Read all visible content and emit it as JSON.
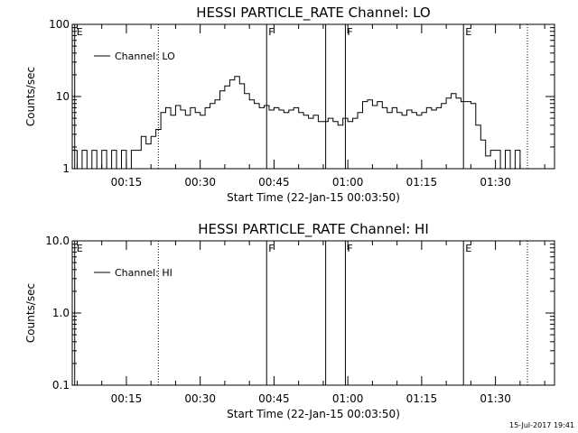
{
  "chart_data": [
    {
      "type": "line",
      "title": "HESSI PARTICLE_RATE Channel: LO",
      "xlabel": "Start Time (22-Jan-15 00:03:50)",
      "ylabel": "Counts/sec",
      "y_scale": "log",
      "ylim": [
        1,
        100
      ],
      "xlim_minutes": [
        4,
        102
      ],
      "x_ticks": [
        "00:15",
        "00:30",
        "00:45",
        "01:00",
        "01:15",
        "01:30"
      ],
      "y_ticks": [
        "1",
        "10",
        "100"
      ],
      "legend": {
        "label": "Channel: LO",
        "placement": "top-left"
      },
      "markers": [
        {
          "label": "E",
          "minute": 4.5,
          "style": "solid"
        },
        {
          "label": "",
          "minute": 21.5,
          "style": "dotted"
        },
        {
          "label": "F",
          "minute": 43.5,
          "style": "solid"
        },
        {
          "label": "",
          "minute": 55.5,
          "style": "solid"
        },
        {
          "label": "F",
          "minute": 59.5,
          "style": "solid"
        },
        {
          "label": "E",
          "minute": 83.5,
          "style": "solid"
        },
        {
          "label": "",
          "minute": 96.5,
          "style": "dotted"
        }
      ],
      "series": [
        {
          "name": "Channel: LO",
          "x_minutes": [
            4,
            5,
            6,
            7,
            8,
            9,
            10,
            11,
            12,
            13,
            14,
            15,
            16,
            17,
            18,
            19,
            20,
            21,
            22,
            23,
            24,
            25,
            26,
            27,
            28,
            29,
            30,
            31,
            32,
            33,
            34,
            35,
            36,
            37,
            38,
            39,
            40,
            41,
            42,
            43,
            44,
            45,
            46,
            47,
            48,
            49,
            50,
            51,
            52,
            53,
            54,
            55,
            56,
            57,
            58,
            59,
            60,
            61,
            62,
            63,
            64,
            65,
            66,
            67,
            68,
            69,
            70,
            71,
            72,
            73,
            74,
            75,
            76,
            77,
            78,
            79,
            80,
            81,
            82,
            83,
            84,
            85,
            86,
            87,
            88,
            89,
            90,
            91,
            92,
            93,
            94,
            95
          ],
          "values": [
            1.8,
            1,
            1.8,
            1,
            1.8,
            1,
            1.8,
            1,
            1.8,
            1,
            1.8,
            1,
            1.8,
            1.8,
            2.8,
            2.2,
            2.8,
            3.5,
            6,
            7,
            5.5,
            7.5,
            6.5,
            5.5,
            7,
            6,
            5.5,
            7,
            8,
            9,
            12,
            14,
            17,
            19,
            15,
            11,
            9,
            8,
            7,
            7.5,
            6.5,
            7,
            6.5,
            6,
            6.5,
            7,
            6,
            5.5,
            5,
            5.5,
            4.5,
            4.5,
            5,
            4.5,
            4,
            5,
            4.5,
            5,
            6,
            8.5,
            9,
            7.5,
            8.5,
            7,
            6,
            7,
            6,
            5.5,
            6.5,
            6,
            5.5,
            6,
            7,
            6.5,
            7,
            8,
            9.5,
            11,
            9.5,
            8.5,
            8.5,
            8,
            4,
            2.5,
            1.5,
            1.8,
            1.8,
            1,
            1.8,
            1,
            1.8,
            1
          ]
        }
      ]
    },
    {
      "type": "line",
      "title": "HESSI PARTICLE_RATE Channel: HI",
      "xlabel": "Start Time (22-Jan-15 00:03:50)",
      "ylabel": "Counts/sec",
      "y_scale": "log",
      "ylim": [
        0.1,
        10
      ],
      "xlim_minutes": [
        4,
        102
      ],
      "x_ticks": [
        "00:15",
        "00:30",
        "00:45",
        "01:00",
        "01:15",
        "01:30"
      ],
      "y_ticks": [
        "0.1",
        "1.0",
        "10.0"
      ],
      "legend": {
        "label": "Channel: HI",
        "placement": "top-left"
      },
      "markers": [
        {
          "label": "E",
          "minute": 4.5,
          "style": "solid"
        },
        {
          "label": "",
          "minute": 21.5,
          "style": "dotted"
        },
        {
          "label": "F",
          "minute": 43.5,
          "style": "solid"
        },
        {
          "label": "",
          "minute": 55.5,
          "style": "solid"
        },
        {
          "label": "F",
          "minute": 59.5,
          "style": "solid"
        },
        {
          "label": "E",
          "minute": 83.5,
          "style": "solid"
        },
        {
          "label": "",
          "minute": 96.5,
          "style": "dotted"
        }
      ],
      "series": [
        {
          "name": "Channel: HI",
          "x_minutes": [],
          "values": []
        }
      ]
    }
  ],
  "footer_timestamp": "15-Jul-2017 19:41"
}
